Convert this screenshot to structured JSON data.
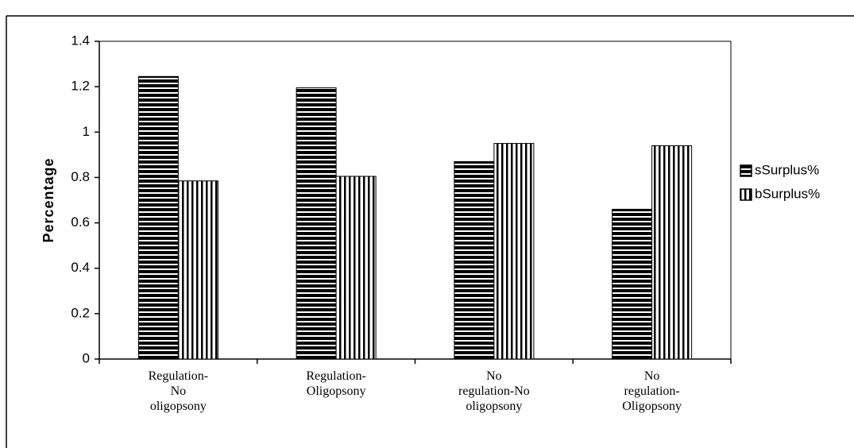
{
  "chart_data": {
    "type": "bar",
    "y_label": "Percentage",
    "categories": [
      "Regulation-\nNo\noligopsony",
      "Regulation-\nOligopsony",
      "No\nregulation-No\noligopsony",
      "No\nregulation-\nOligopsony"
    ],
    "series": [
      {
        "name": "sSurplus%",
        "color": "#000000",
        "pattern": "horizontal",
        "values": [
          1.245,
          1.195,
          0.87,
          0.66
        ]
      },
      {
        "name": "bSurplus%",
        "color": "#000000",
        "pattern": "vertical",
        "values": [
          0.785,
          0.805,
          0.95,
          0.94
        ]
      }
    ],
    "ylim": [
      0,
      1.4
    ],
    "yticks": [
      0,
      0.2,
      0.4,
      0.6,
      0.8,
      1,
      1.2,
      1.4
    ],
    "grid": false,
    "legend": "right"
  }
}
